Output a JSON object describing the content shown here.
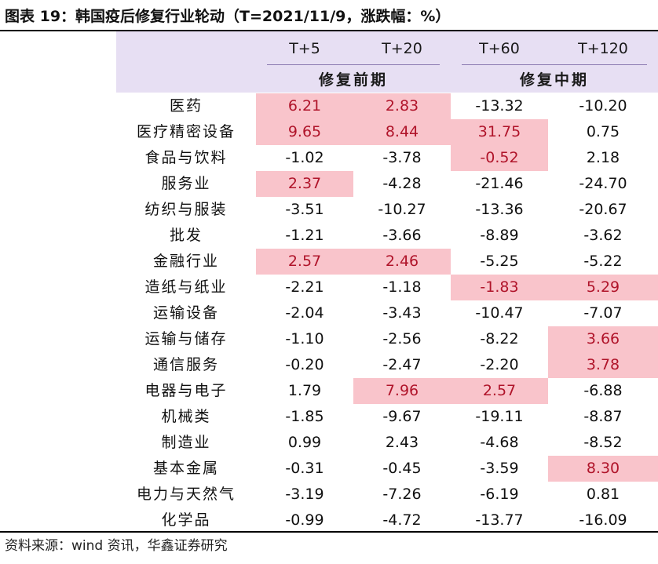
{
  "title": "图表 19：韩国疫后修复行业轮动（T=2021/11/9，涨跌幅：%）",
  "colors": {
    "highlight_bg": "#f9c4cb",
    "highlight_text": "#b0142a",
    "header_bg": "#e7dff3"
  },
  "table": {
    "columns": [
      "T+5",
      "T+20",
      "T+60",
      "T+120"
    ],
    "groups": [
      "修复前期",
      "修复中期"
    ],
    "rows": [
      {
        "name": "医药",
        "values": [
          "6.21",
          "2.83",
          "-13.32",
          "-10.20"
        ],
        "highlight": [
          true,
          true,
          false,
          false
        ]
      },
      {
        "name": "医疗精密设备",
        "values": [
          "9.65",
          "8.44",
          "31.75",
          "0.75"
        ],
        "highlight": [
          true,
          true,
          true,
          false
        ]
      },
      {
        "name": "食品与饮料",
        "values": [
          "-1.02",
          "-3.78",
          "-0.52",
          "2.18"
        ],
        "highlight": [
          false,
          false,
          true,
          false
        ]
      },
      {
        "name": "服务业",
        "values": [
          "2.37",
          "-4.28",
          "-21.46",
          "-24.70"
        ],
        "highlight": [
          true,
          false,
          false,
          false
        ]
      },
      {
        "name": "纺织与服装",
        "values": [
          "-3.51",
          "-10.27",
          "-13.36",
          "-20.67"
        ],
        "highlight": [
          false,
          false,
          false,
          false
        ]
      },
      {
        "name": "批发",
        "values": [
          "-1.21",
          "-3.66",
          "-8.89",
          "-3.62"
        ],
        "highlight": [
          false,
          false,
          false,
          false
        ]
      },
      {
        "name": "金融行业",
        "values": [
          "2.57",
          "2.46",
          "-5.25",
          "-5.22"
        ],
        "highlight": [
          true,
          true,
          false,
          false
        ]
      },
      {
        "name": "造纸与纸业",
        "values": [
          "-2.21",
          "-1.18",
          "-1.83",
          "5.29"
        ],
        "highlight": [
          false,
          false,
          true,
          true
        ]
      },
      {
        "name": "运输设备",
        "values": [
          "-2.04",
          "-3.43",
          "-10.47",
          "-7.07"
        ],
        "highlight": [
          false,
          false,
          false,
          false
        ]
      },
      {
        "name": "运输与储存",
        "values": [
          "-1.10",
          "-2.56",
          "-8.22",
          "3.66"
        ],
        "highlight": [
          false,
          false,
          false,
          true
        ]
      },
      {
        "name": "通信服务",
        "values": [
          "-0.20",
          "-2.47",
          "-2.20",
          "3.78"
        ],
        "highlight": [
          false,
          false,
          false,
          true
        ]
      },
      {
        "name": "电器与电子",
        "values": [
          "1.79",
          "7.96",
          "2.57",
          "-6.88"
        ],
        "highlight": [
          false,
          true,
          true,
          false
        ]
      },
      {
        "name": "机械类",
        "values": [
          "-1.85",
          "-9.67",
          "-19.11",
          "-8.87"
        ],
        "highlight": [
          false,
          false,
          false,
          false
        ]
      },
      {
        "name": "制造业",
        "values": [
          "0.99",
          "2.43",
          "-4.68",
          "-8.52"
        ],
        "highlight": [
          false,
          false,
          false,
          false
        ]
      },
      {
        "name": "基本金属",
        "values": [
          "-0.31",
          "-0.45",
          "-3.59",
          "8.30"
        ],
        "highlight": [
          false,
          false,
          false,
          true
        ]
      },
      {
        "name": "电力与天然气",
        "values": [
          "-3.19",
          "-7.26",
          "-6.19",
          "0.81"
        ],
        "highlight": [
          false,
          false,
          false,
          false
        ]
      },
      {
        "name": "化学品",
        "values": [
          "-0.99",
          "-4.72",
          "-13.77",
          "-16.09"
        ],
        "highlight": [
          false,
          false,
          false,
          false
        ]
      }
    ]
  },
  "source": "资料来源：wind 资讯，华鑫证券研究"
}
